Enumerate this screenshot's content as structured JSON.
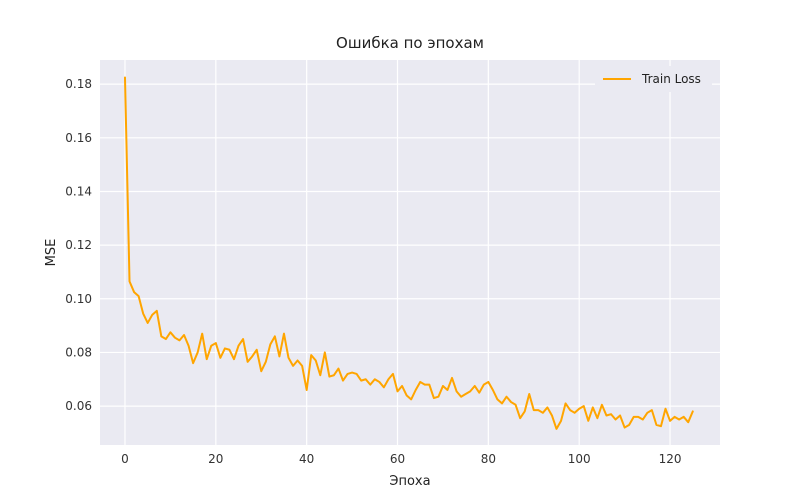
{
  "chart_data": {
    "type": "line",
    "title": "Ошибка по эпохам",
    "xlabel": "Эпоха",
    "ylabel": "MSE",
    "xlim": [
      -5.5,
      131
    ],
    "ylim": [
      0.0455,
      0.189
    ],
    "xticks": [
      0,
      20,
      40,
      60,
      80,
      100,
      120
    ],
    "yticks": [
      0.06,
      0.08,
      0.1,
      0.12,
      0.14,
      0.16,
      0.18
    ],
    "ytick_labels": [
      "0.06",
      "0.08",
      "0.10",
      "0.12",
      "0.14",
      "0.16",
      "0.18"
    ],
    "grid": true,
    "legend_position": "top-right",
    "background": "#eaeaf2",
    "series": [
      {
        "name": "Train Loss",
        "color": "#ffa500",
        "x": [
          0,
          1,
          2,
          3,
          4,
          5,
          6,
          7,
          8,
          9,
          10,
          11,
          12,
          13,
          14,
          15,
          16,
          17,
          18,
          19,
          20,
          21,
          22,
          23,
          24,
          25,
          26,
          27,
          28,
          29,
          30,
          31,
          32,
          33,
          34,
          35,
          36,
          37,
          38,
          39,
          40,
          41,
          42,
          43,
          44,
          45,
          46,
          47,
          48,
          49,
          50,
          51,
          52,
          53,
          54,
          55,
          56,
          57,
          58,
          59,
          60,
          61,
          62,
          63,
          64,
          65,
          66,
          67,
          68,
          69,
          70,
          71,
          72,
          73,
          74,
          75,
          76,
          77,
          78,
          79,
          80,
          81,
          82,
          83,
          84,
          85,
          86,
          87,
          88,
          89,
          90,
          91,
          92,
          93,
          94,
          95,
          96,
          97,
          98,
          99,
          100,
          101,
          102,
          103,
          104,
          105,
          106,
          107,
          108,
          109,
          110,
          111,
          112,
          113,
          114,
          115,
          116,
          117,
          118,
          119,
          120,
          121,
          122,
          123,
          124,
          125
        ],
        "values": [
          0.1825,
          0.1065,
          0.1025,
          0.101,
          0.0945,
          0.091,
          0.094,
          0.0955,
          0.086,
          0.085,
          0.0875,
          0.0855,
          0.0845,
          0.0865,
          0.0825,
          0.076,
          0.08,
          0.087,
          0.0775,
          0.0825,
          0.0835,
          0.078,
          0.0815,
          0.081,
          0.0775,
          0.0825,
          0.085,
          0.0765,
          0.0785,
          0.081,
          0.073,
          0.0765,
          0.083,
          0.086,
          0.0785,
          0.087,
          0.078,
          0.075,
          0.077,
          0.075,
          0.066,
          0.079,
          0.077,
          0.0715,
          0.08,
          0.071,
          0.0715,
          0.074,
          0.0695,
          0.072,
          0.0725,
          0.072,
          0.0695,
          0.07,
          0.068,
          0.07,
          0.069,
          0.067,
          0.07,
          0.072,
          0.0655,
          0.0675,
          0.064,
          0.0625,
          0.066,
          0.069,
          0.068,
          0.068,
          0.063,
          0.0635,
          0.0675,
          0.066,
          0.0705,
          0.0655,
          0.0635,
          0.0645,
          0.0655,
          0.0675,
          0.065,
          0.068,
          0.069,
          0.066,
          0.0625,
          0.061,
          0.0635,
          0.0615,
          0.0605,
          0.0555,
          0.058,
          0.0645,
          0.0585,
          0.0585,
          0.0575,
          0.0595,
          0.0565,
          0.0515,
          0.0545,
          0.061,
          0.0585,
          0.0575,
          0.059,
          0.06,
          0.0545,
          0.0595,
          0.0555,
          0.0605,
          0.0565,
          0.057,
          0.055,
          0.0565,
          0.052,
          0.053,
          0.056,
          0.056,
          0.055,
          0.0575,
          0.0585,
          0.053,
          0.0525,
          0.059,
          0.0545,
          0.056,
          0.055,
          0.056,
          0.054,
          0.058
        ]
      }
    ]
  }
}
